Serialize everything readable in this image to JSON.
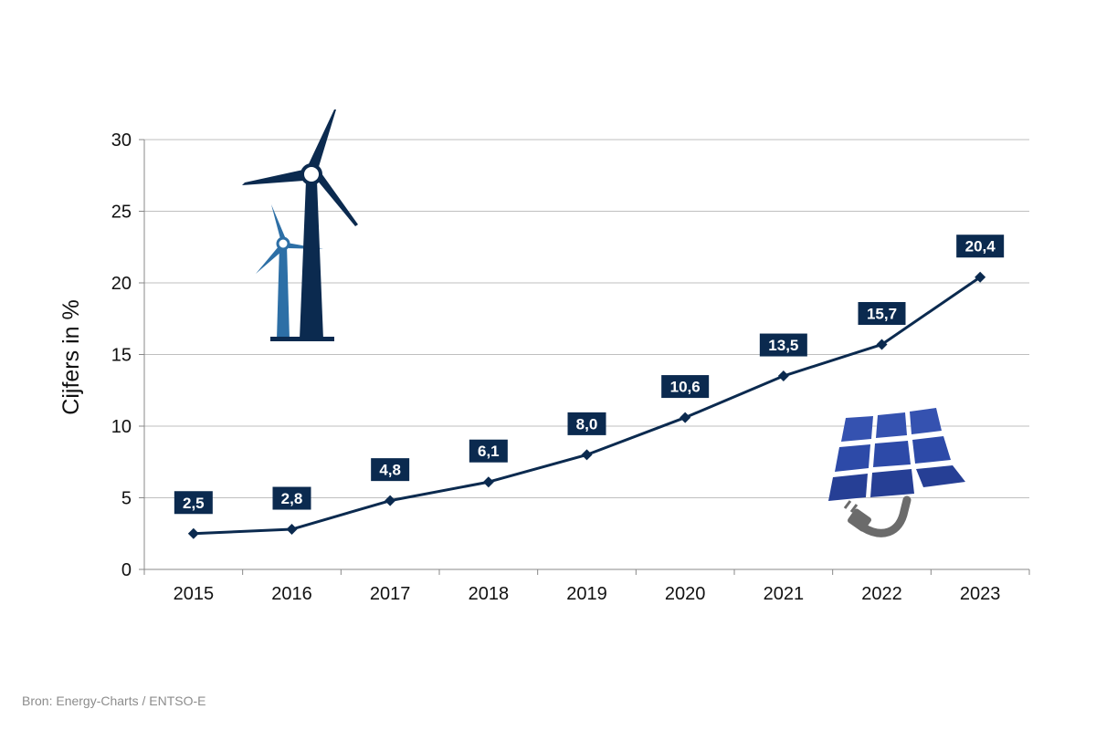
{
  "source": "Bron: Energy-Charts / ENTSO-E",
  "colors": {
    "line": "#0b2a4f",
    "label_bg": "#0b2a4f",
    "gridline": "#bfbfbf",
    "axis": "#888888",
    "turbine_dark": "#0b2a4f",
    "turbine_light": "#2d6fa6",
    "panel_blue": "#2d4aa8",
    "plug_gray": "#6b6b6b"
  },
  "icons": [
    "wind-turbine-icon",
    "solar-panel-icon"
  ],
  "chart_data": {
    "type": "line",
    "ylabel": "Cijfers in %",
    "xlabel": "",
    "categories": [
      "2015",
      "2016",
      "2017",
      "2018",
      "2019",
      "2020",
      "2021",
      "2022",
      "2023"
    ],
    "values": [
      2.5,
      2.8,
      4.8,
      6.1,
      8.0,
      10.6,
      13.5,
      15.7,
      20.4
    ],
    "data_labels": [
      "2,5",
      "2,8",
      "4,8",
      "6,1",
      "8,0",
      "10,6",
      "13,5",
      "15,7",
      "20,4"
    ],
    "ylim": [
      0,
      30
    ],
    "yticks": [
      0,
      5,
      10,
      15,
      20,
      25,
      30
    ],
    "grid": true,
    "marker": "diamond"
  }
}
